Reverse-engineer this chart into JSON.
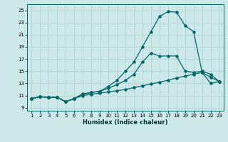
{
  "xlabel": "Humidex (Indice chaleur)",
  "ylabel": "",
  "bg_color": "#cce8e8",
  "grid_color": "#b0d4d4",
  "line_color": "#006666",
  "xlim": [
    0.5,
    23.5
  ],
  "ylim": [
    8.5,
    26.0
  ],
  "xticks": [
    1,
    2,
    3,
    4,
    5,
    6,
    7,
    8,
    9,
    10,
    11,
    12,
    13,
    14,
    15,
    16,
    17,
    18,
    19,
    20,
    21,
    22,
    23
  ],
  "yticks": [
    9,
    11,
    13,
    15,
    17,
    19,
    21,
    23,
    25
  ],
  "line1_x": [
    1,
    2,
    3,
    4,
    5,
    6,
    7,
    8,
    9,
    10,
    11,
    12,
    13,
    14,
    15,
    16,
    17,
    18,
    19,
    20,
    21,
    22,
    23
  ],
  "line1_y": [
    10.5,
    10.8,
    10.7,
    10.7,
    10.0,
    10.5,
    11.3,
    11.5,
    11.7,
    12.5,
    13.5,
    15.0,
    16.5,
    19.0,
    21.5,
    24.0,
    24.8,
    24.7,
    22.5,
    21.5,
    14.8,
    14.0,
    13.3
  ],
  "line2_x": [
    1,
    2,
    3,
    4,
    5,
    6,
    7,
    8,
    9,
    10,
    11,
    12,
    13,
    14,
    15,
    16,
    17,
    18,
    19,
    20,
    21,
    22,
    23
  ],
  "line2_y": [
    10.5,
    10.8,
    10.7,
    10.7,
    10.0,
    10.5,
    11.2,
    11.5,
    11.7,
    12.2,
    12.8,
    13.5,
    14.5,
    16.5,
    18.0,
    17.5,
    17.5,
    17.5,
    15.0,
    14.8,
    15.0,
    14.5,
    13.3
  ],
  "line3_x": [
    1,
    2,
    3,
    4,
    5,
    6,
    7,
    8,
    9,
    10,
    11,
    12,
    13,
    14,
    15,
    16,
    17,
    18,
    19,
    20,
    21,
    22,
    23
  ],
  "line3_y": [
    10.5,
    10.8,
    10.7,
    10.7,
    10.0,
    10.5,
    11.0,
    11.2,
    11.4,
    11.6,
    11.8,
    12.0,
    12.3,
    12.6,
    12.9,
    13.2,
    13.5,
    13.9,
    14.2,
    14.5,
    14.8,
    13.0,
    13.3
  ]
}
